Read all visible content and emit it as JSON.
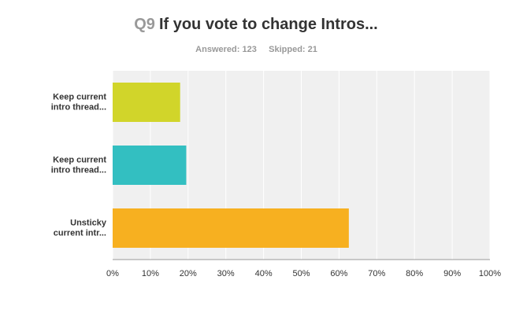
{
  "chart_data": {
    "type": "bar",
    "orientation": "horizontal",
    "question_number": "Q9",
    "title": "If you vote to change Intros...",
    "answered": "Answered: 123",
    "skipped": "Skipped: 21",
    "categories": [
      "Keep current\nintro thread...",
      "Keep current\nintro thread...",
      "Unsticky\ncurrent intr..."
    ],
    "values": [
      17.89,
      19.51,
      62.6
    ],
    "colors": [
      "#d1d52a",
      "#33bfc1",
      "#f7b020"
    ],
    "xlim": [
      0,
      100
    ],
    "xticks": [
      {
        "value": 0,
        "label": "0%"
      },
      {
        "value": 10,
        "label": "10%"
      },
      {
        "value": 20,
        "label": "20%"
      },
      {
        "value": 30,
        "label": "30%"
      },
      {
        "value": 40,
        "label": "40%"
      },
      {
        "value": 50,
        "label": "50%"
      },
      {
        "value": 60,
        "label": "60%"
      },
      {
        "value": 70,
        "label": "70%"
      },
      {
        "value": 80,
        "label": "80%"
      },
      {
        "value": 90,
        "label": "90%"
      },
      {
        "value": 100,
        "label": "100%"
      }
    ],
    "grid": true
  }
}
